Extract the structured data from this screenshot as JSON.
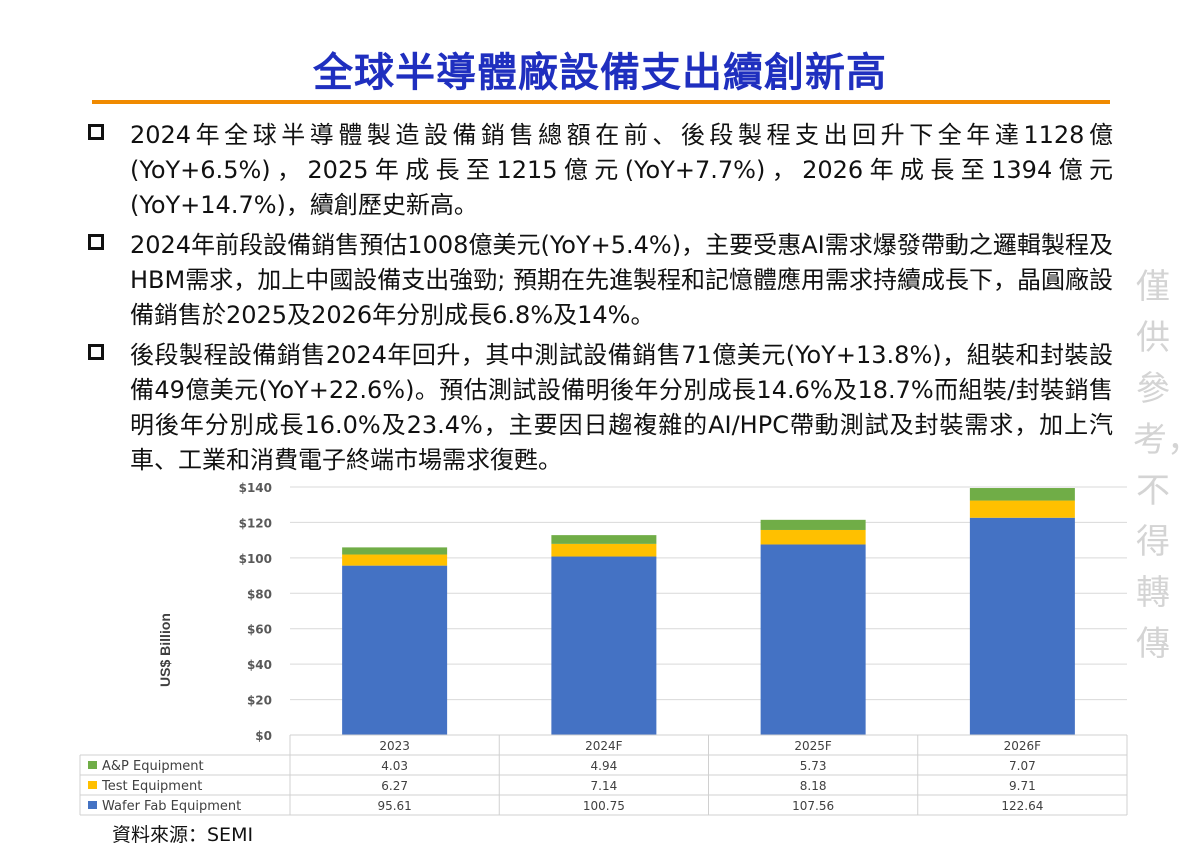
{
  "title": "全球半導體廠設備支出續創新高",
  "bullets": [
    "2024年全球半導體製造設備銷售總額在前、後段製程支出回升下全年達1128億(YoY+6.5%)，2025年成長至1215億元(YoY+7.7%)，2026年成長至1394億元(YoY+14.7%)，續創歷史新高。",
    "2024年前段設備銷售預估1008億美元(YoY+5.4%)，主要受惠AI需求爆發帶動之邏輯製程及HBM需求，加上中國設備支出強勁; 預期在先進製程和記憶體應用需求持續成長下，晶圓廠設備銷售於2025及2026年分別成長6.8%及14%。",
    "後段製程設備銷售2024年回升，其中測試設備銷售71億美元(YoY+13.8%)，組裝和封裝設備49億美元(YoY+22.6%)。預估測試設備明後年分別成長14.6%及18.7%而組裝/封裝銷售明後年分別成長16.0%及23.4%，主要因日趨複雜的AI/HPC帶動測試及封裝需求，加上汽車、工業和消費電子終端市場需求復甦。"
  ],
  "watermark": "僅供參考，不得轉傳",
  "source": "資料來源：SEMI",
  "chart_data": {
    "type": "bar",
    "stacked": true,
    "categories": [
      "2023",
      "2024F",
      "2025F",
      "2026F"
    ],
    "series": [
      {
        "name": "Wafer Fab Equipment",
        "values": [
          95.61,
          100.75,
          107.56,
          122.64
        ],
        "value_labels": [
          "95.61",
          "100.75",
          "107.56",
          "122.64"
        ],
        "color": "#4472c4"
      },
      {
        "name": "Test Equipment",
        "values": [
          6.27,
          7.14,
          8.18,
          9.71
        ],
        "value_labels": [
          "6.27",
          "7.14",
          "8.18",
          "9.71"
        ],
        "color": "#ffc000"
      },
      {
        "name": "A&P Equipment",
        "values": [
          4.03,
          4.94,
          5.73,
          7.07
        ],
        "value_labels": [
          "4.03",
          "4.94",
          "5.73",
          "7.07"
        ],
        "color": "#70ad47"
      }
    ],
    "table_row_order": [
      "A&P Equipment",
      "Test Equipment",
      "Wafer Fab Equipment"
    ],
    "ylabel": "US$ Billion",
    "ylim": [
      0,
      140
    ],
    "yticks": [
      "$0",
      "$20",
      "$40",
      "$60",
      "$80",
      "$100",
      "$120",
      "$140"
    ],
    "grid": true,
    "legend": "data-table-below"
  }
}
